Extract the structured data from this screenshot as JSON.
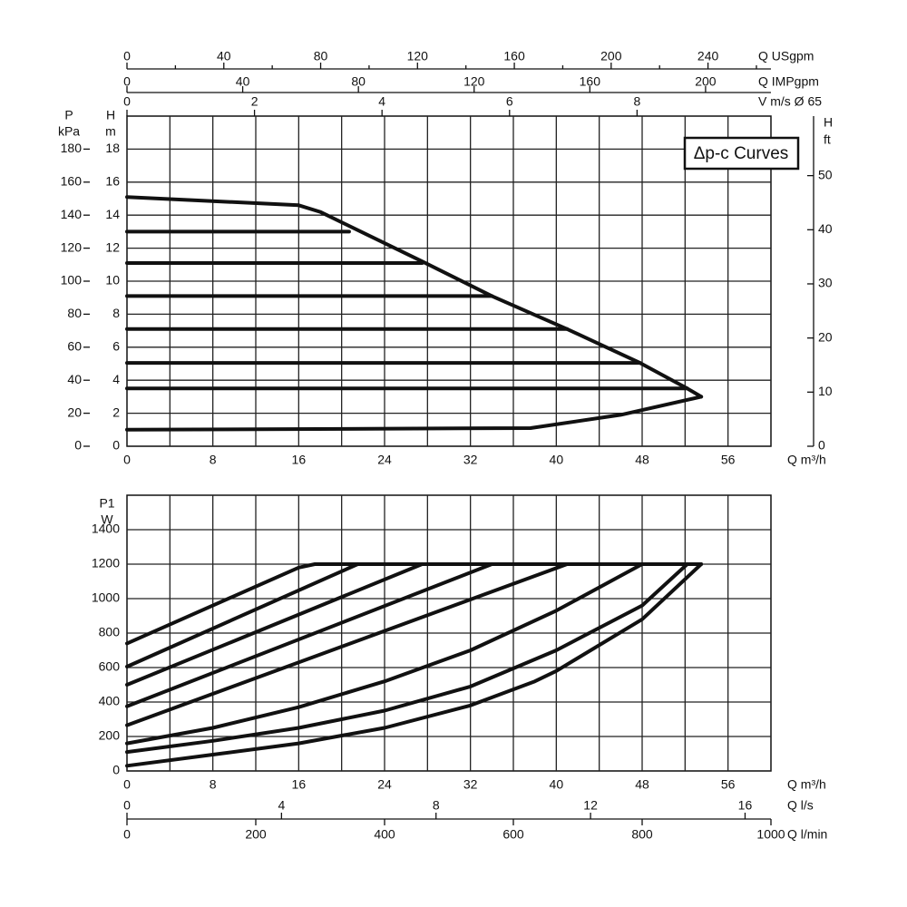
{
  "chart_data": [
    {
      "type": "line",
      "annotation": "Δp-c Curves",
      "xlabel": "Q m³/h",
      "xlim": [
        0,
        60
      ],
      "xticks": [
        0,
        8,
        16,
        24,
        32,
        40,
        48,
        56
      ],
      "xgrid": [
        4,
        8,
        12,
        16,
        20,
        24,
        28,
        32,
        36,
        40,
        44,
        48,
        52,
        56
      ],
      "ylabel": [
        "H",
        "m"
      ],
      "ylim": [
        0,
        20
      ],
      "yticks": [
        0,
        2,
        4,
        6,
        8,
        10,
        12,
        14,
        16,
        18
      ],
      "pressure_axis": {
        "label": [
          "P",
          "kPa"
        ],
        "lim": [
          0,
          200
        ],
        "ticks": [
          0,
          20,
          40,
          60,
          80,
          100,
          120,
          140,
          160,
          180
        ]
      },
      "y2label": [
        "H",
        "ft"
      ],
      "y2lim": [
        0,
        61
      ],
      "y2ticks": [
        0,
        10,
        20,
        30,
        40,
        50
      ],
      "top_axes": [
        {
          "label": "Q USgpm",
          "lim": [
            0,
            266
          ],
          "ticks": [
            0,
            40,
            80,
            120,
            160,
            200,
            240
          ],
          "minor_ticks": [
            20,
            60,
            100,
            140,
            180,
            220,
            260
          ]
        },
        {
          "label": "Q IMPgpm",
          "lim": [
            0,
            222.6
          ],
          "ticks": [
            0,
            40,
            80,
            120,
            160,
            200
          ]
        },
        {
          "label": "V m/s Ø 65",
          "lim": [
            0,
            10.1
          ],
          "ticks": [
            0,
            2,
            4,
            6,
            8
          ]
        }
      ],
      "color": "#111111",
      "series": [
        {
          "x": [
            0,
            16,
            18,
            27.5,
            34,
            41,
            47.8,
            52.2,
            53.5
          ],
          "values": [
            15.1,
            14.6,
            14.2,
            11.2,
            9.1,
            7.1,
            5.05,
            3.5,
            3.0
          ]
        },
        {
          "x": [
            0,
            37.6,
            46,
            53.5
          ],
          "values": [
            1.0,
            1.1,
            1.9,
            3.0
          ]
        },
        {
          "x": [
            0,
            20.7
          ],
          "values": [
            13.0,
            13.0
          ]
        },
        {
          "x": [
            0,
            27.5
          ],
          "values": [
            11.1,
            11.1
          ]
        },
        {
          "x": [
            0,
            34
          ],
          "values": [
            9.1,
            9.1
          ]
        },
        {
          "x": [
            0,
            41
          ],
          "values": [
            7.1,
            7.1
          ]
        },
        {
          "x": [
            0,
            47.8
          ],
          "values": [
            5.05,
            5.05
          ]
        },
        {
          "x": [
            0,
            52.2
          ],
          "values": [
            3.5,
            3.5
          ]
        }
      ]
    },
    {
      "type": "line",
      "xlabel": "Q m³/h",
      "xlim": [
        0,
        60
      ],
      "xticks": [
        0,
        8,
        16,
        24,
        32,
        40,
        48,
        56
      ],
      "xgrid": [
        4,
        8,
        12,
        16,
        20,
        24,
        28,
        32,
        36,
        40,
        44,
        48,
        52,
        56
      ],
      "ylabel": [
        "P1",
        "W"
      ],
      "ylim": [
        0,
        1600
      ],
      "yticks": [
        0,
        200,
        400,
        600,
        800,
        1000,
        1200,
        1400
      ],
      "bottom_axes": [
        {
          "label": "Q l/s",
          "lim": [
            0,
            16.67
          ],
          "ticks": [
            0,
            4,
            8,
            12,
            16
          ]
        },
        {
          "label": "Q l/min",
          "lim": [
            0,
            1000
          ],
          "ticks": [
            0,
            200,
            400,
            600,
            800,
            1000
          ]
        }
      ],
      "color": "#111111",
      "series": [
        {
          "x": [
            0,
            16,
            17.5,
            53.5
          ],
          "values": [
            740,
            1180,
            1200,
            1200
          ]
        },
        {
          "x": [
            0,
            21.5
          ],
          "values": [
            605,
            1200
          ]
        },
        {
          "x": [
            0,
            27.5
          ],
          "values": [
            500,
            1200
          ]
        },
        {
          "x": [
            0,
            34
          ],
          "values": [
            375,
            1200
          ]
        },
        {
          "x": [
            0,
            41
          ],
          "values": [
            265,
            1200
          ]
        },
        {
          "x": [
            0,
            8,
            16,
            24,
            32,
            40,
            48
          ],
          "values": [
            160,
            250,
            370,
            520,
            700,
            930,
            1200
          ]
        },
        {
          "x": [
            0,
            8,
            16,
            24,
            32,
            40,
            48,
            52.2
          ],
          "values": [
            110,
            175,
            250,
            350,
            490,
            700,
            960,
            1200
          ]
        },
        {
          "x": [
            0,
            8,
            16,
            24,
            32,
            38,
            40,
            48,
            53.5
          ],
          "values": [
            30,
            95,
            160,
            250,
            380,
            520,
            580,
            880,
            1200
          ]
        }
      ]
    }
  ]
}
